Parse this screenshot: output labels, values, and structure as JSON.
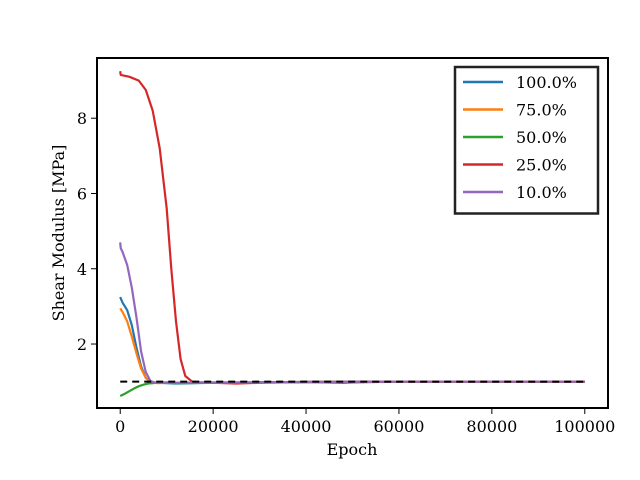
{
  "chart_data": {
    "type": "line",
    "xlabel": "Epoch",
    "ylabel": "Shear Modulus [MPa]",
    "xlim": [
      -5000,
      105000
    ],
    "ylim": [
      0.3,
      9.6
    ],
    "xticks": [
      0,
      20000,
      40000,
      60000,
      80000,
      100000
    ],
    "yticks": [
      2,
      4,
      6,
      8
    ],
    "grid": false,
    "legend_position": "top-right",
    "reference_line": {
      "y": 1.0,
      "style": "dashed",
      "color": "#000000",
      "x": [
        0,
        100000
      ]
    },
    "series": [
      {
        "name": "100.0%",
        "color": "#1f77b4",
        "x": [
          0,
          500,
          1500,
          2500,
          3500,
          4500,
          5500,
          6500,
          8000,
          10000,
          12000,
          20000,
          30000,
          40000,
          48000,
          50000,
          60000,
          80000,
          100000
        ],
        "y": [
          3.25,
          3.1,
          2.9,
          2.5,
          1.9,
          1.4,
          1.1,
          1.0,
          0.97,
          0.96,
          0.95,
          0.97,
          0.98,
          0.99,
          0.97,
          0.98,
          1.0,
          1.0,
          1.0
        ]
      },
      {
        "name": "75.0%",
        "color": "#ff7f0e",
        "x": [
          0,
          500,
          1500,
          2500,
          3500,
          4500,
          5500,
          6500,
          8000,
          10000,
          20000,
          40000,
          60000,
          80000,
          100000
        ],
        "y": [
          2.95,
          2.85,
          2.6,
          2.2,
          1.75,
          1.35,
          1.1,
          1.0,
          0.96,
          0.97,
          0.98,
          0.99,
          1.0,
          1.0,
          1.0
        ]
      },
      {
        "name": "50.0%",
        "color": "#2ca02c",
        "x": [
          0,
          1000,
          2000,
          3000,
          4000,
          5000,
          6000,
          8000,
          10000,
          12000,
          20000,
          30000,
          40000,
          60000,
          80000,
          100000
        ],
        "y": [
          0.62,
          0.68,
          0.75,
          0.82,
          0.88,
          0.92,
          0.95,
          0.97,
          0.98,
          0.96,
          0.97,
          0.98,
          0.99,
          1.0,
          1.0,
          1.0
        ]
      },
      {
        "name": "25.0%",
        "color": "#d62728",
        "x": [
          0,
          100,
          2000,
          4000,
          5500,
          7000,
          8500,
          10000,
          11000,
          12000,
          13000,
          14000,
          15500,
          17000,
          20000,
          25000,
          30000,
          40000,
          60000,
          80000,
          100000
        ],
        "y": [
          9.25,
          9.15,
          9.1,
          9.0,
          8.75,
          8.2,
          7.2,
          5.6,
          4.0,
          2.6,
          1.6,
          1.15,
          1.0,
          0.98,
          0.97,
          0.95,
          0.97,
          0.99,
          1.0,
          1.0,
          1.0
        ]
      },
      {
        "name": "10.0%",
        "color": "#9467bd",
        "x": [
          0,
          100,
          500,
          1500,
          2500,
          3500,
          4500,
          5500,
          6500,
          7500,
          9000,
          12000,
          20000,
          40000,
          60000,
          80000,
          100000
        ],
        "y": [
          4.7,
          4.55,
          4.45,
          4.1,
          3.5,
          2.7,
          1.8,
          1.25,
          1.02,
          0.97,
          0.97,
          0.97,
          0.97,
          0.99,
          1.0,
          1.0,
          1.0
        ]
      }
    ]
  }
}
